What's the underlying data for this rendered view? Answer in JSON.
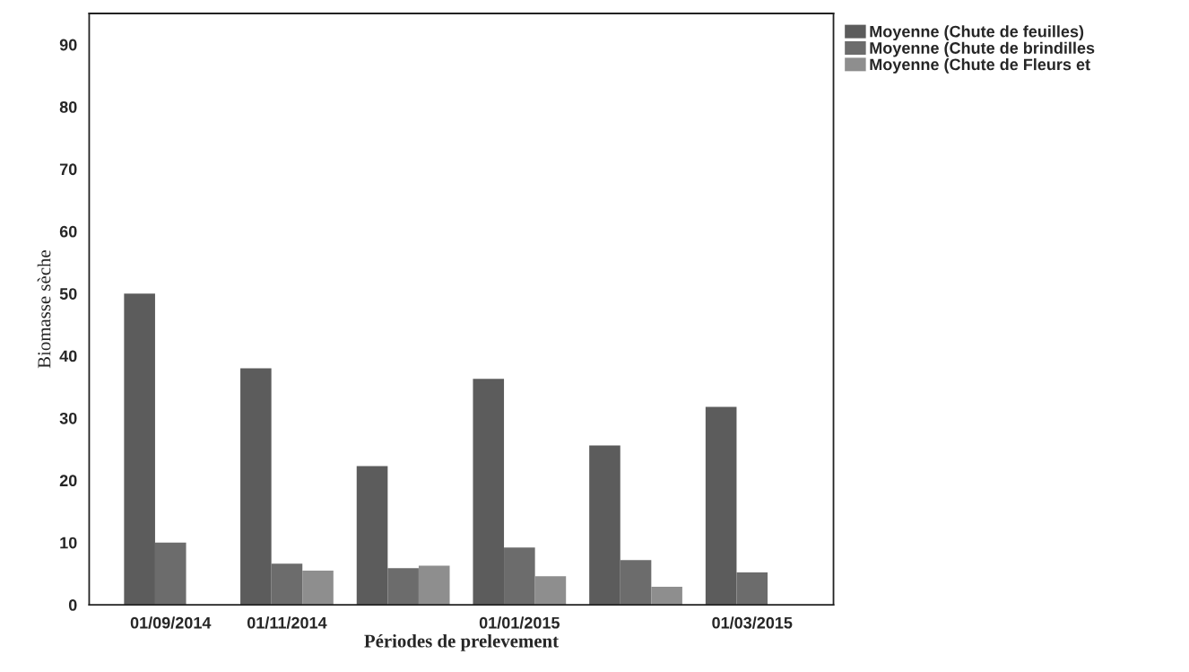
{
  "chart_data": {
    "type": "bar",
    "xlabel": "Périodes de prelevement",
    "ylabel": "Biomasse sèche",
    "categories": [
      "01/09/2014",
      "01/11/2014",
      null,
      "01/01/2015",
      null,
      "01/03/2015"
    ],
    "series": [
      {
        "name": "Moyenne (Chute de feuilles)",
        "color": "#5c5c5c",
        "values": [
          50,
          38.0,
          22.3,
          36.3,
          25.6,
          31.8
        ]
      },
      {
        "name": "Moyenne (Chute de brindilles",
        "color": "#6c6c6c",
        "values": [
          10,
          6.6,
          5.9,
          9.2,
          7.2,
          5.2
        ]
      },
      {
        "name": "Moyenne (Chute de Fleurs et",
        "color": "#8e8e8e",
        "values": [
          null,
          5.5,
          6.3,
          4.6,
          2.9,
          null
        ]
      }
    ],
    "ylim": [
      0,
      95
    ],
    "yticks": [
      0,
      10,
      20,
      30,
      40,
      50,
      60,
      70,
      80,
      90
    ],
    "grid": false,
    "legend": "top right"
  }
}
